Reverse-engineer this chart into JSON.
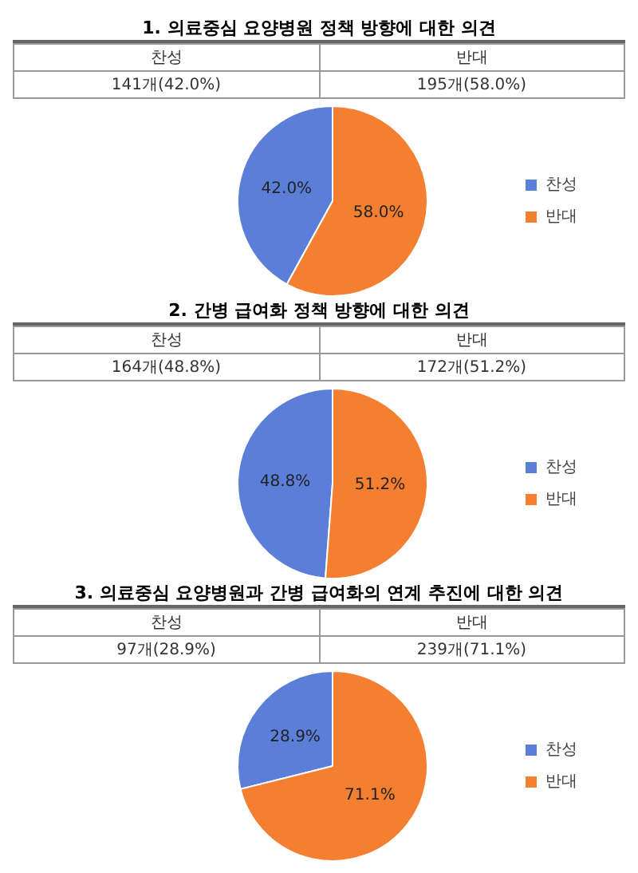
{
  "chart_data": [
    {
      "type": "pie",
      "title": "1. 의료중심 요양병원 정책 방향에 대한 의견",
      "categories": [
        "찬성",
        "반대"
      ],
      "values": [
        42.0,
        58.0
      ],
      "colors": [
        "#5b7fd8",
        "#f47f31"
      ],
      "value_labels": [
        "42.0%",
        "58.0%"
      ],
      "annotations": [
        "141개(42.0%)",
        "195개(58.0%)"
      ],
      "legend": "right"
    },
    {
      "type": "pie",
      "title": "2. 간병 급여화 정책 방향에 대한 의견",
      "categories": [
        "찬성",
        "반대"
      ],
      "values": [
        48.8,
        51.2
      ],
      "colors": [
        "#5b7fd8",
        "#f47f31"
      ],
      "value_labels": [
        "48.8%",
        "51.2%"
      ],
      "annotations": [
        "164개(48.8%)",
        "172개(51.2%)"
      ],
      "legend": "right"
    },
    {
      "type": "pie",
      "title": "3. 의료중심 요양병원과 간병 급여화의 연계 추진에 대한 의견",
      "categories": [
        "찬성",
        "반대"
      ],
      "values": [
        28.9,
        71.1
      ],
      "colors": [
        "#5b7fd8",
        "#f47f31"
      ],
      "value_labels": [
        "28.9%",
        "71.1%"
      ],
      "annotations": [
        "97개(28.9%)",
        "239개(71.1%)"
      ],
      "legend": "right"
    }
  ]
}
